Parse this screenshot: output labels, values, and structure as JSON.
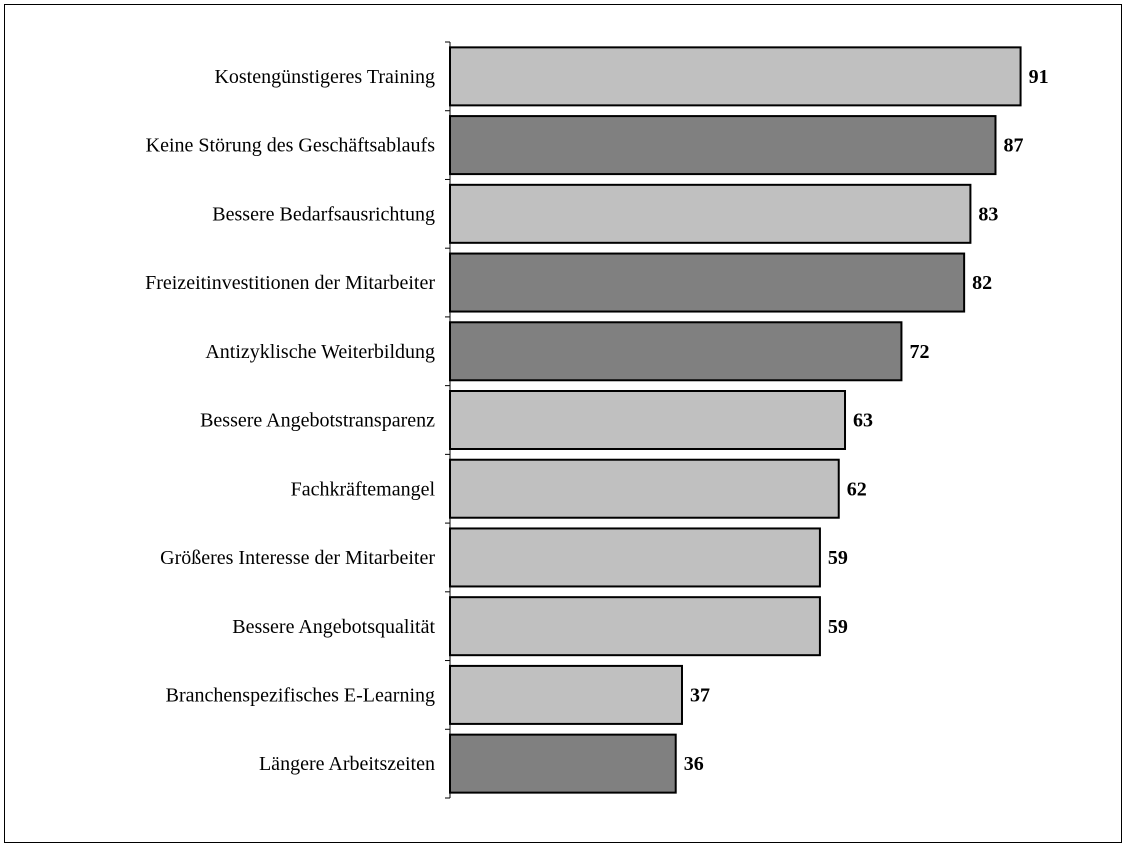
{
  "chart_data": {
    "type": "bar",
    "orientation": "horizontal",
    "categories": [
      "Kostengünstigeres Training",
      "Keine Störung des Geschäftsablaufs",
      "Bessere Bedarfsausrichtung",
      "Freizeitinvestitionen der Mitarbeiter",
      "Antizyklische Weiterbildung",
      "Bessere Angebotstransparenz",
      "Fachkräftemangel",
      "Größeres Interesse der Mitarbeiter",
      "Bessere Angebotsqualität",
      "Branchenspezifisches E-Learning",
      "Längere Arbeitszeiten"
    ],
    "values": [
      91,
      87,
      83,
      82,
      72,
      63,
      62,
      59,
      59,
      37,
      36
    ],
    "colors": [
      "#c0c0c0",
      "#808080",
      "#c0c0c0",
      "#808080",
      "#808080",
      "#c0c0c0",
      "#c0c0c0",
      "#c0c0c0",
      "#c0c0c0",
      "#c0c0c0",
      "#808080"
    ],
    "xlim": [
      0,
      100
    ]
  }
}
